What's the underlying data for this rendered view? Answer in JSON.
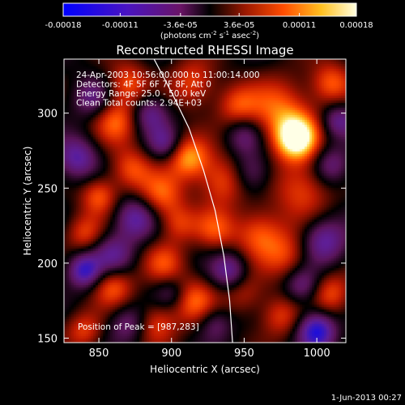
{
  "chart_data": {
    "type": "heatmap",
    "title": "Reconstructed RHESSI Image",
    "xlabel": "Heliocentric X (arcsec)",
    "ylabel": "Heliocentric Y (arcsec)",
    "xlim": [
      826,
      1020
    ],
    "ylim": [
      147,
      336
    ],
    "xticks": [
      850,
      900,
      950,
      1000
    ],
    "yticks": [
      150,
      200,
      250,
      300
    ],
    "colorbar": {
      "min": -0.00018,
      "max": 0.00018,
      "tick_values": [
        -0.00018,
        -0.00011,
        -3.6e-05,
        3.6e-05,
        0.00011,
        0.00018
      ],
      "tick_labels": [
        "-0.00018",
        "-0.00011",
        "-3.6e-05",
        "3.6e-05",
        "0.00011",
        "0.00018"
      ],
      "unit_label": "(photons cm",
      "unit_exp1": "-2",
      "unit_mid": " s",
      "unit_exp2": "-1",
      "unit_end": " asec",
      "unit_exp3": "-2",
      "unit_close": ")"
    },
    "annotations": [
      "24-Apr-2003 10:56:00.000 to 11:00:14.000",
      "Detectors: 4F 5F 6F 7F 8F, Att 0",
      "Energy Range: 25.0 - 50.0 keV",
      "Clean     Total counts: 2.94E+03"
    ],
    "peak_label": "Position of Peak = [987,283]",
    "peak": [
      987,
      283
    ],
    "limb_line": [
      [
        888,
        336
      ],
      [
        900,
        314
      ],
      [
        912,
        290
      ],
      [
        922,
        262
      ],
      [
        930,
        235
      ],
      [
        936,
        205
      ],
      [
        940,
        175
      ],
      [
        942,
        147
      ]
    ],
    "blobs": [
      {
        "x": 986,
        "y": 283,
        "v": 1.0,
        "s": 10
      },
      {
        "x": 975,
        "y": 300,
        "v": 0.6,
        "s": 16
      },
      {
        "x": 1010,
        "y": 320,
        "v": 0.55,
        "s": 10
      },
      {
        "x": 990,
        "y": 250,
        "v": 0.5,
        "s": 14
      },
      {
        "x": 960,
        "y": 220,
        "v": 0.55,
        "s": 12
      },
      {
        "x": 980,
        "y": 205,
        "v": 0.45,
        "s": 12
      },
      {
        "x": 1010,
        "y": 180,
        "v": 0.5,
        "s": 10
      },
      {
        "x": 975,
        "y": 165,
        "v": 0.45,
        "s": 10
      },
      {
        "x": 950,
        "y": 180,
        "v": 0.35,
        "s": 10
      },
      {
        "x": 930,
        "y": 222,
        "v": 0.45,
        "s": 10
      },
      {
        "x": 935,
        "y": 255,
        "v": 0.55,
        "s": 12
      },
      {
        "x": 912,
        "y": 270,
        "v": 0.7,
        "s": 10
      },
      {
        "x": 893,
        "y": 245,
        "v": 0.55,
        "s": 11
      },
      {
        "x": 872,
        "y": 263,
        "v": 0.5,
        "s": 10
      },
      {
        "x": 850,
        "y": 245,
        "v": 0.55,
        "s": 9
      },
      {
        "x": 862,
        "y": 295,
        "v": 0.55,
        "s": 11
      },
      {
        "x": 870,
        "y": 320,
        "v": 0.5,
        "s": 10
      },
      {
        "x": 915,
        "y": 320,
        "v": 0.5,
        "s": 11
      },
      {
        "x": 945,
        "y": 305,
        "v": 0.45,
        "s": 10
      },
      {
        "x": 840,
        "y": 220,
        "v": 0.45,
        "s": 9
      },
      {
        "x": 860,
        "y": 185,
        "v": 0.55,
        "s": 10
      },
      {
        "x": 895,
        "y": 200,
        "v": 0.45,
        "s": 10
      },
      {
        "x": 915,
        "y": 175,
        "v": 0.55,
        "s": 11
      },
      {
        "x": 890,
        "y": 160,
        "v": 0.45,
        "s": 10
      },
      {
        "x": 840,
        "y": 155,
        "v": 0.45,
        "s": 9
      },
      {
        "x": 905,
        "y": 226,
        "v": 0.4,
        "s": 9
      },
      {
        "x": 955,
        "y": 260,
        "v": -0.45,
        "s": 10
      },
      {
        "x": 875,
        "y": 230,
        "v": -0.6,
        "s": 10
      },
      {
        "x": 835,
        "y": 270,
        "v": -0.6,
        "s": 10
      },
      {
        "x": 885,
        "y": 300,
        "v": -0.5,
        "s": 9
      },
      {
        "x": 900,
        "y": 180,
        "v": -0.35,
        "s": 8
      },
      {
        "x": 860,
        "y": 205,
        "v": -0.5,
        "s": 10
      },
      {
        "x": 840,
        "y": 195,
        "v": -0.75,
        "s": 8
      },
      {
        "x": 1005,
        "y": 215,
        "v": -0.6,
        "s": 11
      },
      {
        "x": 1000,
        "y": 155,
        "v": -0.85,
        "s": 9
      },
      {
        "x": 990,
        "y": 185,
        "v": -0.5,
        "s": 9
      },
      {
        "x": 940,
        "y": 195,
        "v": -0.55,
        "s": 9
      },
      {
        "x": 950,
        "y": 285,
        "v": -0.4,
        "s": 9
      },
      {
        "x": 870,
        "y": 160,
        "v": -0.4,
        "s": 9
      },
      {
        "x": 845,
        "y": 310,
        "v": -0.45,
        "s": 9
      },
      {
        "x": 1010,
        "y": 265,
        "v": -0.45,
        "s": 9
      },
      {
        "x": 930,
        "y": 160,
        "v": -0.35,
        "s": 8
      },
      {
        "x": 895,
        "y": 280,
        "v": -0.45,
        "s": 8
      },
      {
        "x": 1015,
        "y": 295,
        "v": -0.5,
        "s": 8
      }
    ]
  },
  "footer": {
    "date": "1-Jun-2013 00:27"
  }
}
